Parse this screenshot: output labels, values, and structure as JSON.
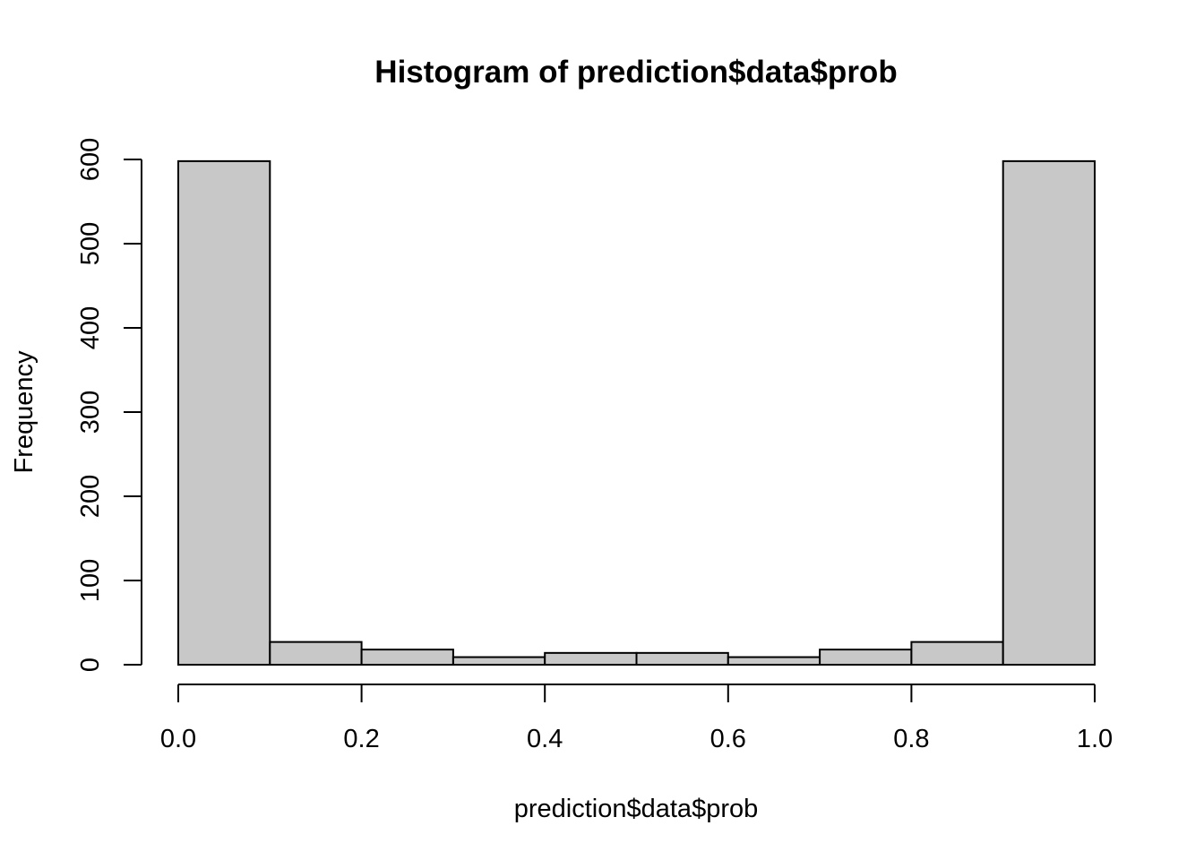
{
  "chart_data": {
    "type": "bar",
    "title": "Histogram of prediction$data$prob",
    "xlabel": "prediction$data$prob",
    "ylabel": "Frequency",
    "bin_edges": [
      0.0,
      0.1,
      0.2,
      0.3,
      0.4,
      0.5,
      0.6,
      0.7,
      0.8,
      0.9,
      1.0
    ],
    "values": [
      598,
      27,
      18,
      9,
      14,
      14,
      9,
      18,
      27,
      598
    ],
    "xlim": [
      0.0,
      1.0
    ],
    "ylim": [
      0,
      600
    ],
    "x_ticks": [
      "0.0",
      "0.2",
      "0.4",
      "0.6",
      "0.8",
      "1.0"
    ],
    "y_ticks": [
      "0",
      "100",
      "200",
      "300",
      "400",
      "500",
      "600"
    ],
    "grid": false,
    "bar_color": "#c8c8c8",
    "edge_color": "#000000"
  }
}
